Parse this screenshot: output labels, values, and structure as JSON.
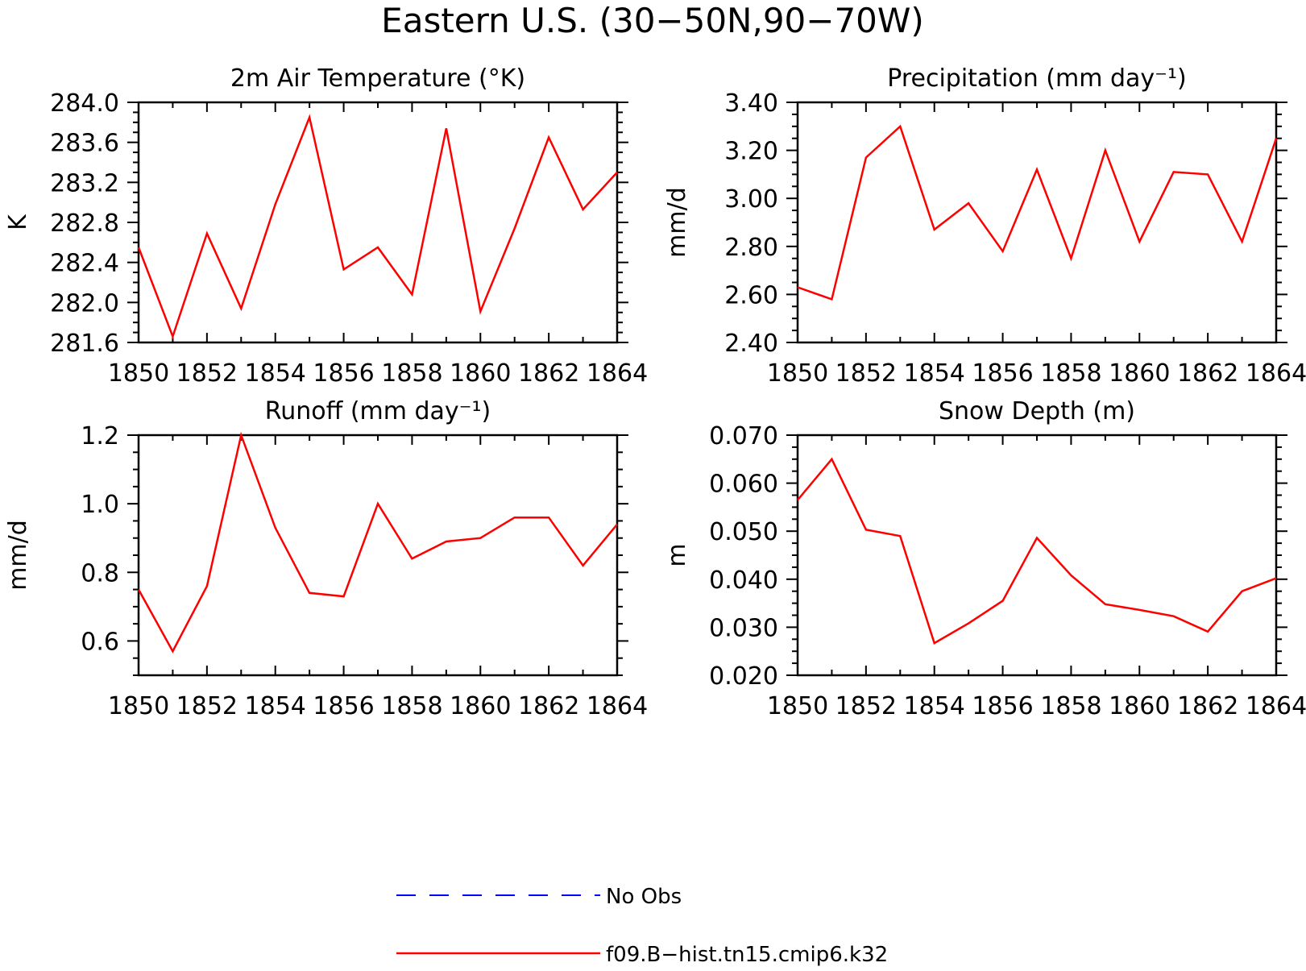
{
  "figure_title": "Eastern U.S. (30−50N,90−70W)",
  "colors": {
    "model": "#ff0000",
    "obs": "#0000ff"
  },
  "legend": [
    {
      "label": "No Obs",
      "style": "dashed",
      "color": "#0000ff"
    },
    {
      "label": "f09.B−hist.tn15.cmip6.k32",
      "style": "solid",
      "color": "#ff0000"
    }
  ],
  "chart_data": [
    {
      "type": "line",
      "title": "2m Air Temperature (°K)",
      "ylabel": "K",
      "x": [
        1850,
        1851,
        1852,
        1853,
        1854,
        1855,
        1856,
        1857,
        1858,
        1859,
        1860,
        1861,
        1862,
        1863,
        1864
      ],
      "xlim": [
        1850,
        1864
      ],
      "xticks": [
        "1850",
        "1852",
        "1854",
        "1856",
        "1858",
        "1860",
        "1862",
        "1864"
      ],
      "ylim": [
        281.6,
        284.0
      ],
      "yticks": [
        "281.6",
        "282.0",
        "282.4",
        "282.8",
        "283.2",
        "283.6",
        "284.0"
      ],
      "series": [
        {
          "values": [
            282.55,
            281.66,
            282.69,
            281.94,
            282.98,
            283.85,
            282.33,
            282.55,
            282.08,
            283.74,
            281.91,
            282.74,
            283.65,
            282.93,
            283.3
          ]
        }
      ]
    },
    {
      "type": "line",
      "title": "Precipitation (mm day⁻¹)",
      "ylabel": "mm/d",
      "x": [
        1850,
        1851,
        1852,
        1853,
        1854,
        1855,
        1856,
        1857,
        1858,
        1859,
        1860,
        1861,
        1862,
        1863,
        1864
      ],
      "xlim": [
        1850,
        1864
      ],
      "xticks": [
        "1850",
        "1852",
        "1854",
        "1856",
        "1858",
        "1860",
        "1862",
        "1864"
      ],
      "ylim": [
        2.4,
        3.4
      ],
      "yticks": [
        "2.40",
        "2.60",
        "2.80",
        "3.00",
        "3.20",
        "3.40"
      ],
      "series": [
        {
          "values": [
            2.63,
            2.58,
            3.17,
            3.3,
            2.87,
            2.98,
            2.78,
            3.12,
            2.75,
            3.2,
            2.82,
            3.11,
            3.1,
            2.82,
            3.25
          ]
        }
      ]
    },
    {
      "type": "line",
      "title": "Runoff (mm day⁻¹)",
      "ylabel": "mm/d",
      "x": [
        1850,
        1851,
        1852,
        1853,
        1854,
        1855,
        1856,
        1857,
        1858,
        1859,
        1860,
        1861,
        1862,
        1863,
        1864
      ],
      "xlim": [
        1850,
        1864
      ],
      "xticks": [
        "1850",
        "1852",
        "1854",
        "1856",
        "1858",
        "1860",
        "1862",
        "1864"
      ],
      "ylim": [
        0.5,
        1.2
      ],
      "yticks": [
        "0.6",
        "0.8",
        "1.0",
        "1.2"
      ],
      "series": [
        {
          "values": [
            0.75,
            0.57,
            0.76,
            1.2,
            0.93,
            0.74,
            0.73,
            1.0,
            0.84,
            0.89,
            0.9,
            0.96,
            0.96,
            0.82,
            0.94
          ]
        }
      ]
    },
    {
      "type": "line",
      "title": "Snow Depth (m)",
      "ylabel": "m",
      "x": [
        1850,
        1851,
        1852,
        1853,
        1854,
        1855,
        1856,
        1857,
        1858,
        1859,
        1860,
        1861,
        1862,
        1863,
        1864
      ],
      "xlim": [
        1850,
        1864
      ],
      "xticks": [
        "1850",
        "1852",
        "1854",
        "1856",
        "1858",
        "1860",
        "1862",
        "1864"
      ],
      "ylim": [
        0.02,
        0.07
      ],
      "yticks": [
        "0.020",
        "0.030",
        "0.040",
        "0.050",
        "0.060",
        "0.070"
      ],
      "series": [
        {
          "values": [
            0.0565,
            0.065,
            0.0503,
            0.049,
            0.0267,
            0.0308,
            0.0355,
            0.0486,
            0.0408,
            0.0348,
            0.0336,
            0.0323,
            0.0291,
            0.0375,
            0.0402
          ]
        }
      ]
    }
  ]
}
